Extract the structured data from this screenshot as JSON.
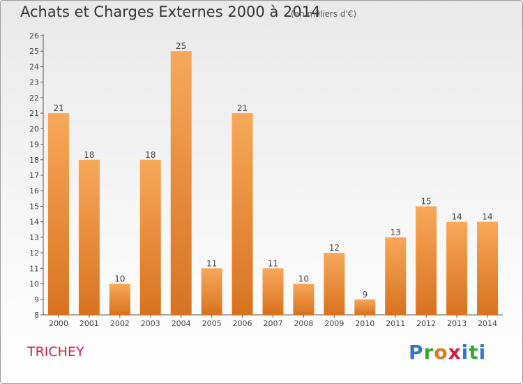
{
  "header": {
    "title": "Achats et Charges Externes 2000 à 2014",
    "subtitle": "(en milliers d'€)"
  },
  "footer": {
    "commune": "TRICHEY",
    "logo_text": "Proxiti"
  },
  "colors": {
    "bar_light": "#f7a85a",
    "bar_dark": "#d8731f",
    "commune_text": "#cc2244"
  },
  "chart_data": {
    "type": "bar",
    "title": "Achats et Charges Externes 2000 à 2014",
    "subtitle": "(en milliers d'€)",
    "xlabel": "",
    "ylabel": "",
    "categories": [
      "2000",
      "2001",
      "2002",
      "2003",
      "2004",
      "2005",
      "2006",
      "2007",
      "2008",
      "2009",
      "2010",
      "2011",
      "2012",
      "2013",
      "2014"
    ],
    "values": [
      21,
      18,
      10,
      18,
      25,
      11,
      21,
      11,
      10,
      12,
      9,
      13,
      15,
      14,
      14
    ],
    "data_labels": [
      "21",
      "18",
      "10",
      "18",
      "25",
      "11",
      "21",
      "11",
      "10",
      "12",
      "9",
      "13",
      "15",
      "14",
      "14"
    ],
    "ylim": [
      8,
      26
    ],
    "yticks": [
      8,
      9,
      10,
      11,
      12,
      13,
      14,
      15,
      16,
      17,
      18,
      19,
      20,
      21,
      22,
      23,
      24,
      25,
      26
    ],
    "grid": false,
    "legend": "none"
  }
}
